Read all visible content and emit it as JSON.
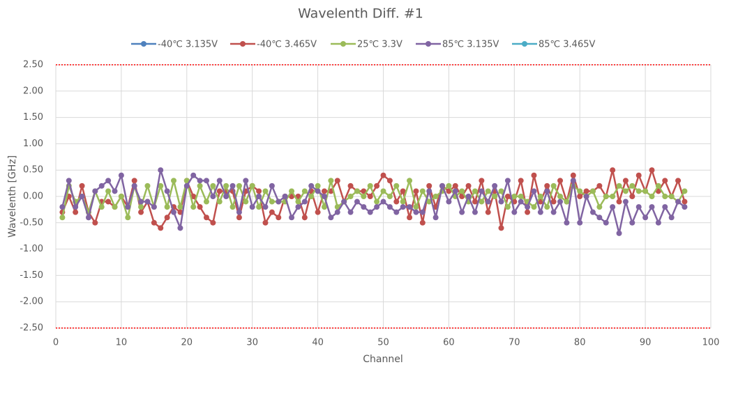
{
  "chart_data": {
    "type": "line",
    "title": "Wavelenth Diff. #1",
    "x_label": "Channel",
    "y_label": "Wavelenth [GHz]",
    "x": [
      1,
      2,
      3,
      4,
      5,
      6,
      7,
      8,
      9,
      10,
      11,
      12,
      13,
      14,
      15,
      16,
      17,
      18,
      19,
      20,
      21,
      22,
      23,
      24,
      25,
      26,
      27,
      28,
      29,
      30,
      31,
      32,
      33,
      34,
      35,
      36,
      37,
      38,
      39,
      40,
      41,
      42,
      43,
      44,
      45,
      46,
      47,
      48,
      49,
      50,
      51,
      52,
      53,
      54,
      55,
      56,
      57,
      58,
      59,
      60,
      61,
      62,
      63,
      64,
      65,
      66,
      67,
      68,
      69,
      70,
      71,
      72,
      73,
      74,
      75,
      76,
      77,
      78,
      79,
      80,
      81,
      82,
      83,
      84,
      85,
      86,
      87,
      88,
      89,
      90,
      91,
      92,
      93,
      94,
      95,
      96
    ],
    "series": [
      {
        "name": "-40℃ 3.135V",
        "color": "#4f81bd",
        "values": [
          null,
          null,
          null,
          null,
          null,
          null,
          null,
          null,
          null,
          null,
          null,
          null,
          null,
          null,
          null,
          null,
          null,
          null,
          null,
          null,
          null,
          null,
          null,
          null,
          null,
          null,
          null,
          null,
          null,
          null,
          null,
          null,
          null,
          null,
          null,
          null,
          null,
          null,
          null,
          null,
          null,
          null,
          null,
          null,
          null,
          null,
          null,
          null,
          null,
          null,
          null,
          null,
          null,
          null,
          null,
          null,
          null,
          null,
          null,
          null,
          null,
          null,
          null,
          null,
          null,
          null,
          null,
          null,
          null,
          null,
          null,
          null,
          null,
          null,
          null,
          null,
          null,
          null,
          null,
          null,
          null,
          null,
          null,
          null,
          null,
          null,
          null,
          null,
          null,
          null,
          null,
          null,
          null,
          null,
          null,
          null
        ]
      },
      {
        "name": "-40℃ 3.465V",
        "color": "#c0504d",
        "values": [
          -0.3,
          0,
          -0.3,
          0.2,
          -0.3,
          -0.5,
          -0.1,
          -0.1,
          -0.2,
          0,
          -0.2,
          0.3,
          -0.3,
          -0.1,
          -0.5,
          -0.6,
          -0.4,
          -0.2,
          -0.3,
          0.3,
          0,
          -0.2,
          -0.4,
          -0.5,
          0.1,
          0.1,
          0.1,
          -0.4,
          0.1,
          0.2,
          0.1,
          -0.5,
          -0.3,
          -0.4,
          0,
          0,
          0,
          -0.4,
          0.1,
          -0.3,
          0.1,
          0.1,
          0.3,
          -0.1,
          0.2,
          0.1,
          0.1,
          0,
          0.2,
          0.4,
          0.3,
          -0.1,
          0.1,
          -0.4,
          0.1,
          -0.5,
          0.2,
          -0.2,
          0.2,
          0.1,
          0.2,
          0,
          0.2,
          -0.1,
          0.3,
          -0.3,
          0.1,
          -0.6,
          0,
          -0.1,
          0.3,
          -0.3,
          0.4,
          -0.1,
          0.2,
          -0.1,
          0.3,
          -0.1,
          0.4,
          0,
          0.1,
          0.1,
          0.2,
          0,
          0.5,
          -0.1,
          0.3,
          0,
          0.4,
          0.1,
          0.5,
          0.1,
          0.3,
          0,
          0.3,
          -0.1
        ]
      },
      {
        "name": "25℃ 3.3V",
        "color": "#9bbb59",
        "values": [
          -0.4,
          0.2,
          -0.1,
          0,
          -0.3,
          0.1,
          -0.2,
          0.1,
          -0.2,
          0,
          -0.4,
          0.2,
          -0.2,
          0.2,
          -0.2,
          0.2,
          -0.2,
          0.3,
          -0.2,
          0.3,
          -0.2,
          0.2,
          -0.1,
          0.2,
          -0.1,
          0.2,
          -0.2,
          0.2,
          -0.1,
          0.2,
          -0.2,
          0.1,
          -0.1,
          -0.1,
          -0.1,
          0.1,
          -0.1,
          0.1,
          0,
          0.2,
          -0.2,
          0.3,
          -0.2,
          -0.1,
          0,
          0.1,
          0,
          0.2,
          -0.1,
          0.1,
          0,
          0.2,
          -0.1,
          0.3,
          -0.2,
          0.1,
          -0.1,
          0,
          0.1,
          0.2,
          0,
          0.1,
          -0.1,
          0.1,
          -0.1,
          0.1,
          0,
          0.1,
          -0.2,
          0,
          0,
          -0.1,
          -0.2,
          0,
          -0.2,
          0.2,
          0,
          -0.1,
          0.2,
          0.1,
          0,
          0.1,
          -0.2,
          0,
          0,
          0.2,
          0.1,
          0.2,
          0.1,
          0.1,
          0,
          0.2,
          0,
          0,
          -0.1,
          0.1
        ]
      },
      {
        "name": "85℃ 3.135V",
        "color": "#8064a2",
        "values": [
          -0.2,
          0.3,
          -0.2,
          0,
          -0.4,
          0.1,
          0.2,
          0.3,
          0.1,
          0.4,
          -0.2,
          0.2,
          -0.1,
          -0.1,
          -0.2,
          0.5,
          0.1,
          -0.3,
          -0.6,
          0.2,
          0.4,
          0.3,
          0.3,
          0,
          0.3,
          0,
          0.2,
          -0.3,
          0.3,
          -0.2,
          0,
          -0.2,
          0.2,
          -0.1,
          0,
          -0.4,
          -0.2,
          -0.1,
          0.2,
          0.1,
          0,
          -0.4,
          -0.3,
          -0.1,
          -0.3,
          -0.1,
          -0.2,
          -0.3,
          -0.2,
          -0.1,
          -0.2,
          -0.3,
          -0.2,
          -0.2,
          -0.3,
          -0.3,
          0.1,
          -0.4,
          0.2,
          -0.1,
          0.1,
          -0.3,
          0,
          -0.3,
          0.1,
          -0.1,
          0.2,
          -0.1,
          0.3,
          -0.3,
          -0.1,
          -0.2,
          0.1,
          -0.3,
          0.1,
          -0.3,
          -0.1,
          -0.5,
          0.3,
          -0.5,
          0,
          -0.3,
          -0.4,
          -0.5,
          -0.2,
          -0.7,
          -0.1,
          -0.5,
          -0.2,
          -0.4,
          -0.2,
          -0.5,
          -0.2,
          -0.4,
          -0.1,
          -0.2
        ]
      },
      {
        "name": "85℃ 3.465V",
        "color": "#4bacc6",
        "values": [
          null,
          null,
          null,
          null,
          null,
          null,
          null,
          null,
          null,
          null,
          null,
          null,
          null,
          null,
          null,
          null,
          null,
          null,
          null,
          null,
          null,
          null,
          null,
          null,
          null,
          null,
          null,
          null,
          null,
          null,
          null,
          null,
          null,
          null,
          null,
          null,
          null,
          null,
          null,
          null,
          null,
          null,
          null,
          null,
          null,
          null,
          null,
          null,
          null,
          null,
          null,
          null,
          null,
          null,
          null,
          null,
          null,
          null,
          null,
          null,
          null,
          null,
          null,
          null,
          null,
          null,
          null,
          null,
          null,
          null,
          null,
          null,
          null,
          null,
          null,
          null,
          null,
          null,
          null,
          null,
          null,
          null,
          null,
          null,
          null,
          null,
          null,
          null,
          null,
          null,
          null,
          null,
          null,
          null,
          null,
          null
        ]
      }
    ],
    "xlim": [
      0,
      100
    ],
    "xticks": [
      0,
      10,
      20,
      30,
      40,
      50,
      60,
      70,
      80,
      90,
      100
    ],
    "ylim": [
      -2.5,
      2.5
    ],
    "yticks": [
      {
        "value": -2.5,
        "label": "-2.50"
      },
      {
        "value": -2,
        "label": "-2.00"
      },
      {
        "value": -1.5,
        "label": "-1.50"
      },
      {
        "value": -1,
        "label": "-1.00"
      },
      {
        "value": -0.5,
        "label": "-0.50"
      },
      {
        "value": 0,
        "label": "0.00"
      },
      {
        "value": 0.5,
        "label": "0.50"
      },
      {
        "value": 1,
        "label": "1.00"
      },
      {
        "value": 1.5,
        "label": "1.50"
      },
      {
        "value": 2,
        "label": "2.00"
      },
      {
        "value": 2.5,
        "label": "2.50"
      }
    ],
    "reference_lines": [
      {
        "value": 2.5,
        "color": "#ff0000"
      },
      {
        "value": -2.5,
        "color": "#ff0000"
      }
    ],
    "grid": true,
    "legend": "top"
  }
}
